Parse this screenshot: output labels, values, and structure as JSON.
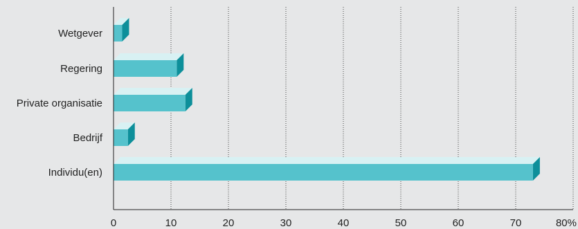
{
  "chart_data": {
    "type": "bar",
    "orientation": "horizontal",
    "categories": [
      "Wetgever",
      "Regering",
      "Private organisatie",
      "Bedrijf",
      "Individu(en)"
    ],
    "values": [
      1.5,
      11,
      12.5,
      2.5,
      73
    ],
    "xlim": [
      0,
      80
    ],
    "x_ticks": [
      0,
      10,
      20,
      30,
      40,
      50,
      60,
      70,
      80
    ],
    "x_tick_labels": [
      "0",
      "10",
      "20",
      "30",
      "40",
      "50",
      "60",
      "70",
      "80%"
    ],
    "grid": "vertical dotted",
    "colors": {
      "bar_front": "#55c2cc",
      "bar_top": "#d8f1f3",
      "bar_side": "#0d8f9a",
      "axis": "#222222",
      "grid": "#444444",
      "background": "#e6e7e8"
    }
  }
}
